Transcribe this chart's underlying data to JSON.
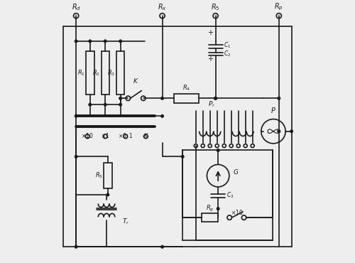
{
  "bg_color": "#eeeeee",
  "line_color": "#1a1a1a",
  "fig_width": 5.0,
  "fig_height": 3.7,
  "dpi": 100
}
